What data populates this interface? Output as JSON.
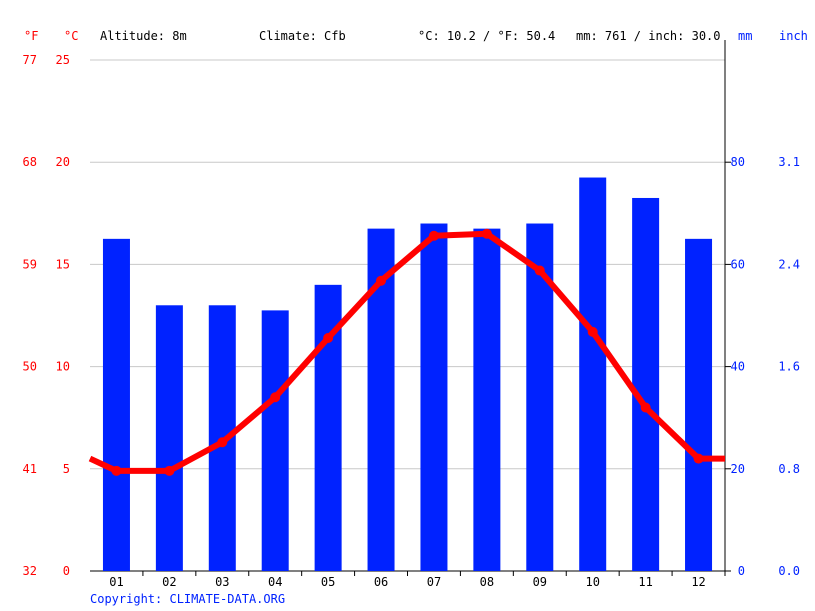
{
  "header": {
    "f_unit": "°F",
    "c_unit": "°C",
    "altitude": "Altitude: 8m",
    "climate": "Climate: Cfb",
    "temp_mean": "°C: 10.2 / °F: 50.4",
    "precip_total": "mm: 761 / inch: 30.0",
    "mm_unit": "mm",
    "inch_unit": "inch"
  },
  "copyright": "Copyright: CLIMATE-DATA.ORG",
  "chart_data": {
    "type": "bar+line",
    "categories": [
      "01",
      "02",
      "03",
      "04",
      "05",
      "06",
      "07",
      "08",
      "09",
      "10",
      "11",
      "12"
    ],
    "series": [
      {
        "type": "bar",
        "unit": "mm",
        "color": "#0022ff",
        "values": [
          65,
          52,
          52,
          51,
          56,
          67,
          68,
          67,
          68,
          77,
          73,
          65
        ]
      },
      {
        "type": "line",
        "unit": "°C",
        "color": "#ff0000",
        "values": [
          4.9,
          4.9,
          6.3,
          8.5,
          11.4,
          14.2,
          16.4,
          16.5,
          14.7,
          11.7,
          8.0,
          5.5
        ]
      }
    ],
    "y_left_c": {
      "range": [
        0,
        25
      ],
      "ticks": [
        "0",
        "5",
        "10",
        "15",
        "20",
        "25"
      ]
    },
    "y_left_f": {
      "ticks": [
        "32",
        "41",
        "50",
        "59",
        "68",
        "77"
      ]
    },
    "y_right_mm": {
      "range": [
        0,
        100
      ],
      "ticks": [
        "0",
        "20",
        "40",
        "60",
        "80"
      ]
    },
    "y_right_inch": {
      "ticks": [
        "0.0",
        "0.8",
        "1.6",
        "2.4",
        "3.1"
      ]
    },
    "grid": true
  }
}
